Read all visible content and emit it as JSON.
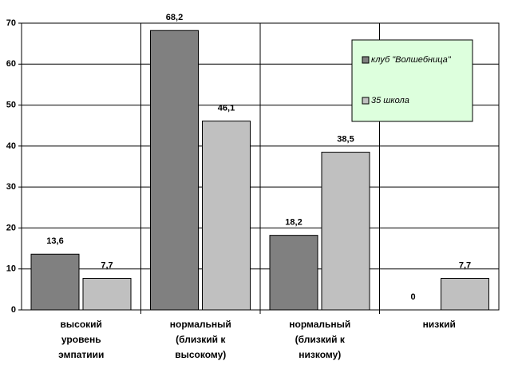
{
  "chart_data": {
    "type": "bar",
    "categories": [
      "высокий\nуровень\nэмпатиии",
      "нормальный\n(близкий к\nвысокому)",
      "нормальный\n(близкий к\nнизкому)",
      "низкий"
    ],
    "series": [
      {
        "name": "клуб \"Волшебница\"",
        "color": "#808080",
        "values": [
          13.6,
          68.2,
          18.2,
          0
        ],
        "value_labels": [
          "13,6",
          "68,2",
          "18,2",
          "0"
        ]
      },
      {
        "name": "35 школа",
        "color": "#c0c0c0",
        "values": [
          7.7,
          46.1,
          38.5,
          7.7
        ],
        "value_labels": [
          "7,7",
          "46,1",
          "38,5",
          "7,7"
        ]
      }
    ],
    "ylim": [
      0,
      70
    ],
    "yticks": [
      0,
      10,
      20,
      30,
      40,
      50,
      60,
      70
    ],
    "grid": true,
    "legend_position": "upper right",
    "legend_background": "#ddffdd"
  }
}
